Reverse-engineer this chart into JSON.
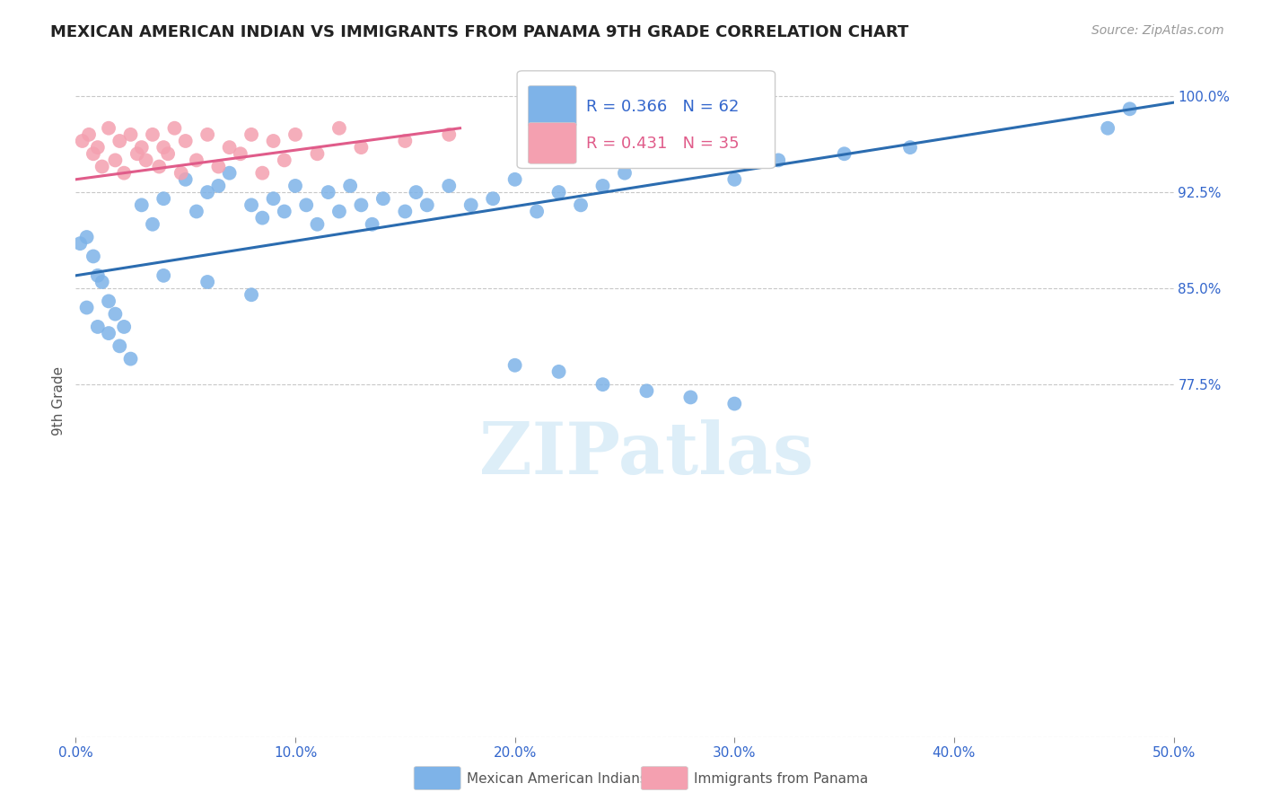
{
  "title": "MEXICAN AMERICAN INDIAN VS IMMIGRANTS FROM PANAMA 9TH GRADE CORRELATION CHART",
  "source": "Source: ZipAtlas.com",
  "ylabel": "9th Grade",
  "y_ticks": [
    50.0,
    77.5,
    85.0,
    92.5,
    100.0
  ],
  "x_ticks": [
    0.0,
    0.1,
    0.2,
    0.3,
    0.4,
    0.5
  ],
  "x_tick_labels": [
    "0.0%",
    "10.0%",
    "20.0%",
    "30.0%",
    "40.0%",
    "50.0%"
  ],
  "y_tick_labels_right": [
    "",
    "77.5%",
    "85.0%",
    "92.5%",
    "100.0%"
  ],
  "xlim": [
    0.0,
    0.5
  ],
  "ylim": [
    50.0,
    102.5
  ],
  "legend_blue_label": "Mexican American Indians",
  "legend_pink_label": "Immigrants from Panama",
  "legend_r_blue": "R = 0.366",
  "legend_n_blue": "N = 62",
  "legend_r_pink": "R = 0.431",
  "legend_n_pink": "N = 35",
  "watermark": "ZIPatlas",
  "blue_color": "#7EB3E8",
  "pink_color": "#F4A0B0",
  "line_blue_color": "#2B6CB0",
  "line_pink_color": "#E05C8A",
  "blue_scatter_x": [
    0.002,
    0.005,
    0.008,
    0.01,
    0.012,
    0.015,
    0.018,
    0.022,
    0.03,
    0.035,
    0.04,
    0.05,
    0.055,
    0.06,
    0.065,
    0.07,
    0.08,
    0.085,
    0.09,
    0.095,
    0.1,
    0.105,
    0.11,
    0.115,
    0.12,
    0.125,
    0.13,
    0.135,
    0.14,
    0.15,
    0.155,
    0.16,
    0.17,
    0.18,
    0.19,
    0.2,
    0.21,
    0.22,
    0.23,
    0.24,
    0.25,
    0.27,
    0.3,
    0.32,
    0.35,
    0.38,
    0.005,
    0.01,
    0.015,
    0.02,
    0.025,
    0.04,
    0.06,
    0.08,
    0.2,
    0.22,
    0.24,
    0.26,
    0.28,
    0.3,
    0.48,
    0.47
  ],
  "blue_scatter_y": [
    88.5,
    89.0,
    87.5,
    86.0,
    85.5,
    84.0,
    83.0,
    82.0,
    91.5,
    90.0,
    92.0,
    93.5,
    91.0,
    92.5,
    93.0,
    94.0,
    91.5,
    90.5,
    92.0,
    91.0,
    93.0,
    91.5,
    90.0,
    92.5,
    91.0,
    93.0,
    91.5,
    90.0,
    92.0,
    91.0,
    92.5,
    91.5,
    93.0,
    91.5,
    92.0,
    93.5,
    91.0,
    92.5,
    91.5,
    93.0,
    94.0,
    96.0,
    93.5,
    95.0,
    95.5,
    96.0,
    83.5,
    82.0,
    81.5,
    80.5,
    79.5,
    86.0,
    85.5,
    84.5,
    79.0,
    78.5,
    77.5,
    77.0,
    76.5,
    76.0,
    99.0,
    97.5
  ],
  "pink_scatter_x": [
    0.003,
    0.006,
    0.008,
    0.01,
    0.012,
    0.015,
    0.018,
    0.02,
    0.022,
    0.025,
    0.028,
    0.03,
    0.032,
    0.035,
    0.038,
    0.04,
    0.042,
    0.045,
    0.048,
    0.05,
    0.055,
    0.06,
    0.065,
    0.07,
    0.075,
    0.08,
    0.085,
    0.09,
    0.095,
    0.1,
    0.11,
    0.12,
    0.13,
    0.15,
    0.17
  ],
  "pink_scatter_y": [
    96.5,
    97.0,
    95.5,
    96.0,
    94.5,
    97.5,
    95.0,
    96.5,
    94.0,
    97.0,
    95.5,
    96.0,
    95.0,
    97.0,
    94.5,
    96.0,
    95.5,
    97.5,
    94.0,
    96.5,
    95.0,
    97.0,
    94.5,
    96.0,
    95.5,
    97.0,
    94.0,
    96.5,
    95.0,
    97.0,
    95.5,
    97.5,
    96.0,
    96.5,
    97.0
  ],
  "blue_line_x": [
    0.0,
    0.5
  ],
  "blue_line_y": [
    86.0,
    99.5
  ],
  "pink_line_x": [
    0.0,
    0.175
  ],
  "pink_line_y": [
    93.5,
    97.5
  ]
}
